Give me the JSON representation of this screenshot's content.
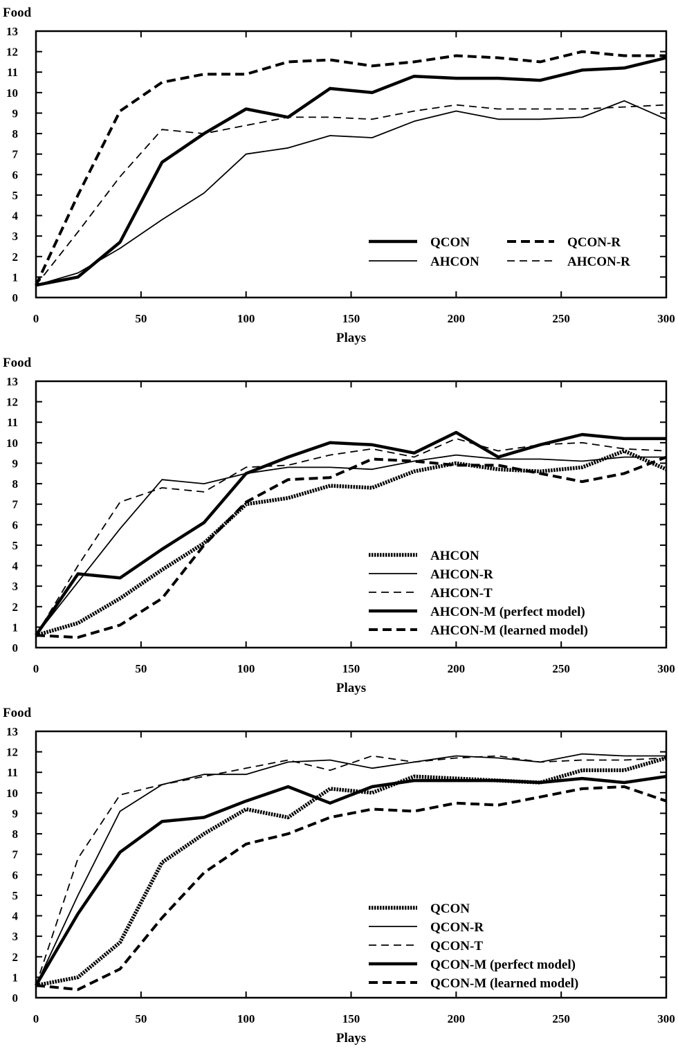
{
  "chart_data": [
    {
      "type": "line",
      "ylabel": "Food",
      "xlabel": "Plays",
      "xlim": [
        0,
        300
      ],
      "ylim": [
        0,
        13
      ],
      "xticks": [
        0,
        50,
        100,
        150,
        200,
        250,
        300
      ],
      "yticks": [
        0,
        1,
        2,
        3,
        4,
        5,
        6,
        7,
        8,
        9,
        10,
        11,
        12,
        13
      ],
      "grid": false,
      "legend": {
        "placement": "bottom-right",
        "columns": 2
      },
      "series": [
        {
          "name": "QCON",
          "style": "thick-solid",
          "x": [
            0,
            20,
            40,
            60,
            80,
            100,
            120,
            140,
            160,
            180,
            200,
            220,
            240,
            260,
            280,
            300
          ],
          "y": [
            0.6,
            1.0,
            2.7,
            6.6,
            8.0,
            9.2,
            8.8,
            10.2,
            10.0,
            10.8,
            10.7,
            10.7,
            10.6,
            11.1,
            11.2,
            11.7
          ]
        },
        {
          "name": "AHCON",
          "style": "thin-solid",
          "x": [
            0,
            20,
            40,
            60,
            80,
            100,
            120,
            140,
            160,
            180,
            200,
            220,
            240,
            260,
            280,
            300
          ],
          "y": [
            0.6,
            1.2,
            2.4,
            3.8,
            5.1,
            7.0,
            7.3,
            7.9,
            7.8,
            8.6,
            9.1,
            8.7,
            8.7,
            8.8,
            9.6,
            8.7
          ]
        },
        {
          "name": "QCON-R",
          "style": "thick-dashed",
          "x": [
            0,
            20,
            40,
            60,
            80,
            100,
            120,
            140,
            160,
            180,
            200,
            220,
            240,
            260,
            280,
            300
          ],
          "y": [
            0.6,
            5.0,
            9.1,
            10.5,
            10.9,
            10.9,
            11.5,
            11.6,
            11.3,
            11.5,
            11.8,
            11.7,
            11.5,
            12.0,
            11.8,
            11.8
          ]
        },
        {
          "name": "AHCON-R",
          "style": "thin-dashed",
          "x": [
            0,
            20,
            40,
            60,
            80,
            100,
            120,
            140,
            160,
            180,
            200,
            220,
            240,
            260,
            280,
            300
          ],
          "y": [
            0.6,
            3.2,
            5.9,
            8.2,
            8.0,
            8.4,
            8.8,
            8.8,
            8.7,
            9.1,
            9.4,
            9.2,
            9.2,
            9.2,
            9.3,
            9.4
          ]
        }
      ]
    },
    {
      "type": "line",
      "ylabel": "Food",
      "xlabel": "Plays",
      "xlim": [
        0,
        300
      ],
      "ylim": [
        0,
        13
      ],
      "xticks": [
        0,
        50,
        100,
        150,
        200,
        250,
        300
      ],
      "yticks": [
        0,
        1,
        2,
        3,
        4,
        5,
        6,
        7,
        8,
        9,
        10,
        11,
        12,
        13
      ],
      "grid": false,
      "legend": {
        "placement": "bottom-right",
        "columns": 1
      },
      "series": [
        {
          "name": "AHCON",
          "style": "thick-dotted",
          "x": [
            0,
            20,
            40,
            60,
            80,
            100,
            120,
            140,
            160,
            180,
            200,
            220,
            240,
            260,
            280,
            300
          ],
          "y": [
            0.6,
            1.2,
            2.4,
            3.8,
            5.1,
            7.0,
            7.3,
            7.9,
            7.8,
            8.6,
            9.0,
            8.7,
            8.6,
            8.8,
            9.6,
            8.7
          ]
        },
        {
          "name": "AHCON-R",
          "style": "thin-solid",
          "x": [
            0,
            20,
            40,
            60,
            80,
            100,
            120,
            140,
            160,
            180,
            200,
            220,
            240,
            260,
            280,
            300
          ],
          "y": [
            0.6,
            3.2,
            5.8,
            8.2,
            8.0,
            8.5,
            8.8,
            8.8,
            8.7,
            9.1,
            9.4,
            9.2,
            9.2,
            9.1,
            9.3,
            9.3
          ]
        },
        {
          "name": "AHCON-T",
          "style": "thin-dashed",
          "x": [
            0,
            20,
            40,
            60,
            80,
            100,
            120,
            140,
            160,
            180,
            200,
            220,
            240,
            260,
            280,
            300
          ],
          "y": [
            0.6,
            4.0,
            7.1,
            7.8,
            7.6,
            8.8,
            8.9,
            9.4,
            9.7,
            9.3,
            10.2,
            9.6,
            9.9,
            10.0,
            9.7,
            9.6
          ]
        },
        {
          "name": "AHCON-M (perfect model)",
          "style": "thick-solid",
          "x": [
            0,
            20,
            40,
            60,
            80,
            100,
            120,
            140,
            160,
            180,
            200,
            220,
            240,
            260,
            280,
            300
          ],
          "y": [
            0.6,
            3.6,
            3.4,
            4.8,
            6.1,
            8.5,
            9.3,
            10.0,
            9.9,
            9.5,
            10.5,
            9.3,
            9.9,
            10.4,
            10.2,
            10.2
          ]
        },
        {
          "name": "AHCON-M (learned model)",
          "style": "thick-dashed",
          "x": [
            0,
            20,
            40,
            60,
            80,
            100,
            120,
            140,
            160,
            180,
            200,
            220,
            240,
            260,
            280,
            300
          ],
          "y": [
            0.6,
            0.5,
            1.1,
            2.4,
            5.0,
            7.1,
            8.2,
            8.3,
            9.2,
            9.1,
            8.9,
            8.9,
            8.5,
            8.1,
            8.5,
            9.3
          ]
        }
      ]
    },
    {
      "type": "line",
      "ylabel": "Food",
      "xlabel": "Plays",
      "xlim": [
        0,
        300
      ],
      "ylim": [
        0,
        13
      ],
      "xticks": [
        0,
        50,
        100,
        150,
        200,
        250,
        300
      ],
      "yticks": [
        0,
        1,
        2,
        3,
        4,
        5,
        6,
        7,
        8,
        9,
        10,
        11,
        12,
        13
      ],
      "grid": false,
      "legend": {
        "placement": "bottom-right",
        "columns": 1
      },
      "series": [
        {
          "name": "QCON",
          "style": "thick-dotted",
          "x": [
            0,
            20,
            40,
            60,
            80,
            100,
            120,
            140,
            160,
            180,
            200,
            220,
            240,
            260,
            280,
            300
          ],
          "y": [
            0.6,
            1.0,
            2.7,
            6.6,
            8.0,
            9.2,
            8.8,
            10.2,
            10.0,
            10.8,
            10.7,
            10.6,
            10.5,
            11.1,
            11.1,
            11.7
          ]
        },
        {
          "name": "QCON-R",
          "style": "thin-solid",
          "x": [
            0,
            20,
            40,
            60,
            80,
            100,
            120,
            140,
            160,
            180,
            200,
            220,
            240,
            260,
            280,
            300
          ],
          "y": [
            0.6,
            5.0,
            9.1,
            10.4,
            10.9,
            10.9,
            11.5,
            11.6,
            11.2,
            11.5,
            11.8,
            11.7,
            11.5,
            11.9,
            11.8,
            11.8
          ]
        },
        {
          "name": "QCON-T",
          "style": "thin-dashed",
          "x": [
            0,
            20,
            40,
            60,
            80,
            100,
            120,
            140,
            160,
            180,
            200,
            220,
            240,
            260,
            280,
            300
          ],
          "y": [
            0.6,
            6.8,
            9.9,
            10.4,
            10.8,
            11.2,
            11.6,
            11.1,
            11.8,
            11.5,
            11.7,
            11.8,
            11.5,
            11.6,
            11.6,
            11.7
          ]
        },
        {
          "name": "QCON-M (perfect model)",
          "style": "thick-solid",
          "x": [
            0,
            20,
            40,
            60,
            80,
            100,
            120,
            140,
            160,
            180,
            200,
            220,
            240,
            260,
            280,
            300
          ],
          "y": [
            0.6,
            4.1,
            7.1,
            8.6,
            8.8,
            9.6,
            10.3,
            9.5,
            10.3,
            10.6,
            10.6,
            10.6,
            10.5,
            10.7,
            10.5,
            10.8
          ]
        },
        {
          "name": "QCON-M (learned model)",
          "style": "thick-dashed",
          "x": [
            0,
            20,
            40,
            60,
            80,
            100,
            120,
            140,
            160,
            180,
            200,
            220,
            240,
            260,
            280,
            300
          ],
          "y": [
            0.6,
            0.4,
            1.4,
            3.9,
            6.1,
            7.5,
            8.0,
            8.8,
            9.2,
            9.1,
            9.5,
            9.4,
            9.8,
            10.2,
            10.3,
            9.6
          ]
        }
      ]
    }
  ]
}
